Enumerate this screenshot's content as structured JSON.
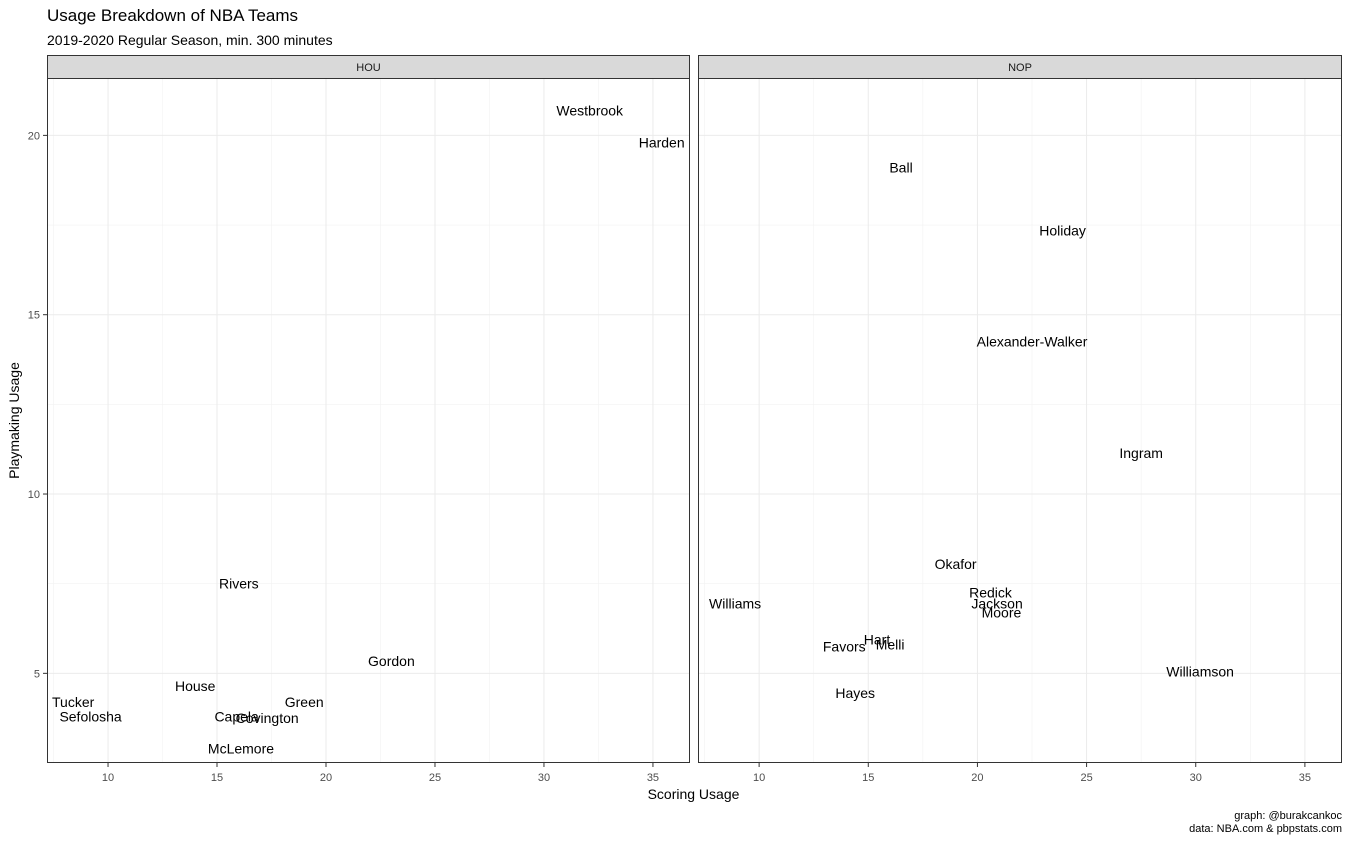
{
  "title": "Usage Breakdown of NBA Teams",
  "subtitle": "2019-2020 Regular Season, min. 300 minutes",
  "caption": [
    "graph: @burakcankoc",
    "data: NBA.com & pbpstats.com"
  ],
  "chart_data": {
    "type": "scatter",
    "xlabel": "Scoring Usage",
    "ylabel": "Playmaking Usage",
    "xlim": [
      7.2,
      36.7
    ],
    "ylim": [
      2.5,
      21.6
    ],
    "x_ticks": [
      10,
      15,
      20,
      25,
      30,
      35
    ],
    "y_ticks": [
      5,
      10,
      15,
      20
    ],
    "grid": true,
    "panels": [
      {
        "name": "HOU",
        "points": [
          {
            "label": "Westbrook",
            "x": 32.1,
            "y": 20.7
          },
          {
            "label": "Harden",
            "x": 35.4,
            "y": 19.8
          },
          {
            "label": "Rivers",
            "x": 16.0,
            "y": 7.5
          },
          {
            "label": "Gordon",
            "x": 23.0,
            "y": 5.35
          },
          {
            "label": "House",
            "x": 14.0,
            "y": 4.65
          },
          {
            "label": "Tucker",
            "x": 8.4,
            "y": 4.2
          },
          {
            "label": "Green",
            "x": 19.0,
            "y": 4.2
          },
          {
            "label": "Sefolosha",
            "x": 9.2,
            "y": 3.8
          },
          {
            "label": "Capela",
            "x": 15.9,
            "y": 3.8
          },
          {
            "label": "Covington",
            "x": 17.3,
            "y": 3.75
          },
          {
            "label": "McLemore",
            "x": 16.1,
            "y": 2.9
          }
        ]
      },
      {
        "name": "NOP",
        "points": [
          {
            "label": "Ball",
            "x": 16.5,
            "y": 19.1
          },
          {
            "label": "Holiday",
            "x": 23.9,
            "y": 17.35
          },
          {
            "label": "Alexander-Walker",
            "x": 22.5,
            "y": 14.25
          },
          {
            "label": "Ingram",
            "x": 27.5,
            "y": 11.15
          },
          {
            "label": "Okafor",
            "x": 19.0,
            "y": 8.05
          },
          {
            "label": "Redick",
            "x": 20.6,
            "y": 7.25
          },
          {
            "label": "Williams",
            "x": 8.9,
            "y": 6.95
          },
          {
            "label": "Jackson",
            "x": 20.9,
            "y": 6.95
          },
          {
            "label": "Moore",
            "x": 21.1,
            "y": 6.7
          },
          {
            "label": "Hart",
            "x": 15.4,
            "y": 5.95
          },
          {
            "label": "Melli",
            "x": 16.0,
            "y": 5.8
          },
          {
            "label": "Favors",
            "x": 13.9,
            "y": 5.75
          },
          {
            "label": "Williamson",
            "x": 30.2,
            "y": 5.05
          },
          {
            "label": "Hayes",
            "x": 14.4,
            "y": 4.45
          }
        ]
      }
    ]
  }
}
